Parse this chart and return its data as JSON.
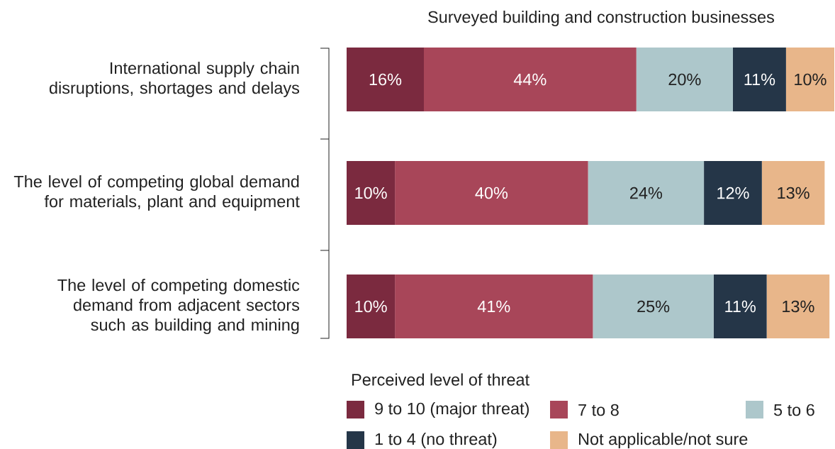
{
  "chart_data": {
    "type": "bar",
    "orientation": "horizontal",
    "stacked": true,
    "title": "Surveyed building and construction businesses",
    "legend_title": "Perceived level of threat",
    "legend": "bottom",
    "categories": [
      "International supply chain disruptions, shortages and delays",
      "The level of competing global demand for materials, plant and equipment",
      "The level of competing domestic demand from adjacent sectors such as building and mining"
    ],
    "series": [
      {
        "name": "9 to 10 (major threat)",
        "color": "#7b2a3f",
        "values": [
          16,
          10,
          10
        ],
        "value_labels": [
          "16%",
          "10%",
          "10%"
        ]
      },
      {
        "name": "7 to 8",
        "color": "#a84659",
        "values": [
          44,
          40,
          41
        ],
        "value_labels": [
          "44%",
          "40%",
          "41%"
        ]
      },
      {
        "name": "5 to 6",
        "color": "#adc7cb",
        "values": [
          20,
          24,
          25
        ],
        "value_labels": [
          "20%",
          "24%",
          "25%"
        ]
      },
      {
        "name": "1 to 4 (no threat)",
        "color": "#253648",
        "values": [
          11,
          12,
          11
        ],
        "value_labels": [
          "11%",
          "12%",
          "11%"
        ]
      },
      {
        "name": "Not applicable/not sure",
        "color": "#e8b68a",
        "values": [
          10,
          13,
          13
        ],
        "value_labels": [
          "10%",
          "13%",
          "13%"
        ]
      }
    ]
  }
}
